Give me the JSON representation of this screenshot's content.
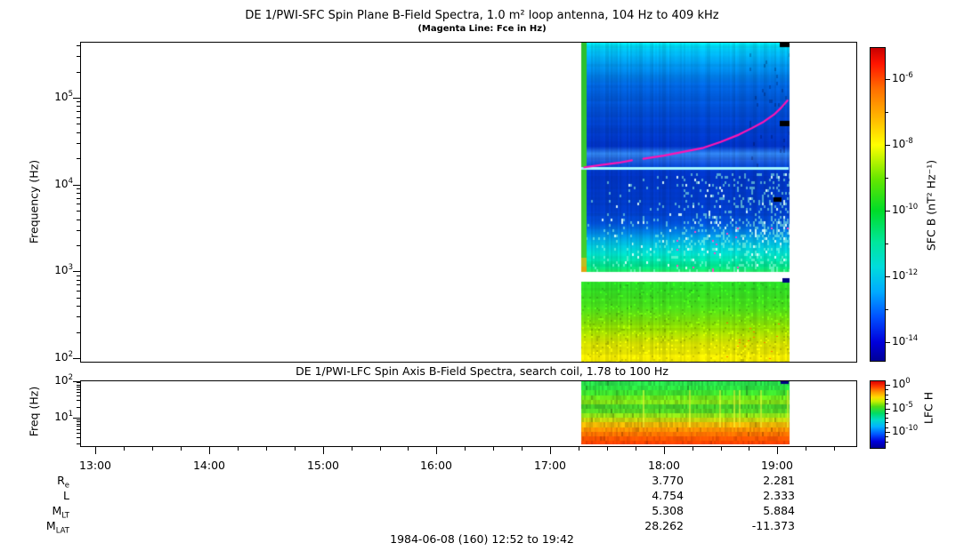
{
  "page": {
    "title": "DE 1/PWI-SFC  Spin Plane B-Field Spectra, 1.0 m² loop antenna, 104 Hz to 409 kHz",
    "subtitle": "(Magenta Line: Fce in Hz)",
    "footer_date": "1984-06-08 (160) 12:52 to 19:42"
  },
  "chart_data": [
    {
      "type": "heatmap",
      "name": "sfc_spectrogram",
      "title": "DE 1/PWI-SFC  Spin Plane B-Field Spectra, 1.0 m² loop antenna, 104 Hz to 409 kHz",
      "ylabel": "Frequency (Hz)",
      "y_scale": "log",
      "y_range_hz": [
        104,
        409000
      ],
      "yticks": [
        {
          "f": 100000,
          "label": "10^5"
        },
        {
          "f": 10000,
          "label": "10^4"
        },
        {
          "f": 1000,
          "label": "10^3"
        },
        {
          "f": 100,
          "label": "10^2"
        }
      ],
      "x_range_time": [
        "12:52",
        "19:42"
      ],
      "xticks": [
        "13:00",
        "14:00",
        "15:00",
        "16:00",
        "17:00",
        "18:00",
        "19:00"
      ],
      "data_coverage_time": [
        "17:16",
        "19:06"
      ],
      "bands_upper_hz": [
        [
          442000,
          "#00E6EE"
        ],
        [
          350000,
          "#00BCEE"
        ],
        [
          250000,
          "#0096E8"
        ],
        [
          140000,
          "#0064DC"
        ],
        [
          60000,
          "#0046CE"
        ],
        [
          28000,
          "#0032C4"
        ],
        [
          23000,
          "#2F80E8"
        ],
        [
          19000,
          "#1E5EDC"
        ],
        [
          15800,
          "#0042D0"
        ],
        [
          13500,
          "#0034C6"
        ],
        [
          5000,
          "#003CC8"
        ],
        [
          3600,
          "#0052DC"
        ],
        [
          2800,
          "#0084E4"
        ],
        [
          2200,
          "#00B8E2"
        ],
        [
          1600,
          "#00DCC8"
        ],
        [
          1150,
          "#00E088"
        ],
        [
          1000,
          "#20E060"
        ]
      ],
      "band_gap_hz": [
        830,
        1000
      ],
      "bands_lower_hz": [
        [
          790,
          "#28DC28"
        ],
        [
          390,
          "#48DC1A"
        ],
        [
          220,
          "#96DE00"
        ],
        [
          150,
          "#D2DE00"
        ],
        [
          104,
          "#EEE600"
        ]
      ],
      "interference_line_hz": 15500,
      "interference_line_color": "#A6F7FF",
      "fce_line_color": "#FF14B4",
      "fce_line_segments_t_hz": [
        [
          [
            17.3,
            15800
          ],
          [
            17.45,
            16800
          ],
          [
            17.6,
            17800
          ],
          [
            17.72,
            19000
          ]
        ],
        [
          [
            17.82,
            19800
          ],
          [
            18.0,
            21500
          ],
          [
            18.15,
            23500
          ],
          [
            18.35,
            26500
          ],
          [
            18.5,
            31000
          ],
          [
            18.66,
            37500
          ],
          [
            18.78,
            45000
          ],
          [
            18.88,
            53000
          ],
          [
            18.97,
            64000
          ],
          [
            19.03,
            76000
          ],
          [
            19.09,
            93000
          ]
        ]
      ],
      "artifact_marks": [
        {
          "x": 876,
          "y": 47,
          "w": 11,
          "h": 6,
          "color": "#000000"
        },
        {
          "x": 876,
          "y": 136,
          "w": 11,
          "h": 6,
          "color": "#000000"
        },
        {
          "x": 869,
          "y": 222,
          "w": 9,
          "h": 5,
          "color": "#000000"
        },
        {
          "x": 879,
          "y": 313,
          "w": 8,
          "h": 5,
          "color": "#000080"
        }
      ],
      "colorbar": {
        "label": "SFC B (nT² Hz⁻¹)",
        "ticks": [
          {
            "exp": -6,
            "label": "10^-6"
          },
          {
            "exp": -8,
            "label": "10^-8"
          },
          {
            "exp": -10,
            "label": "10^-10"
          },
          {
            "exp": -12,
            "label": "10^-12"
          },
          {
            "exp": -14,
            "label": "10^-14"
          }
        ],
        "minor_exps": [
          -5,
          -7,
          -9,
          -11,
          -13
        ],
        "stops": [
          [
            0,
            "#C80000"
          ],
          [
            0.05,
            "#FF1400"
          ],
          [
            0.13,
            "#FF6E00"
          ],
          [
            0.22,
            "#FFB400"
          ],
          [
            0.31,
            "#FFFF00"
          ],
          [
            0.42,
            "#64E600"
          ],
          [
            0.52,
            "#00DC28"
          ],
          [
            0.62,
            "#00E69B"
          ],
          [
            0.7,
            "#00DCDC"
          ],
          [
            0.78,
            "#00AAFF"
          ],
          [
            0.86,
            "#0050FF"
          ],
          [
            0.94,
            "#0000DC"
          ],
          [
            1,
            "#000096"
          ]
        ]
      }
    },
    {
      "type": "heatmap",
      "name": "lfc_spectrogram",
      "title": "DE 1/PWI-LFC  Spin Axis B-Field Spectra, search coil, 1.78 to 100 Hz",
      "ylabel": "Freq (Hz)",
      "y_scale": "log",
      "y_range_hz": [
        1.78,
        100
      ],
      "yticks": [
        {
          "f": 100,
          "label": "10^2"
        },
        {
          "f": 10,
          "label": "10^1"
        }
      ],
      "data_coverage_time": [
        "17:16",
        "19:06"
      ],
      "bands_hz": [
        [
          100,
          "#28DC50"
        ],
        [
          55,
          "#2CE238"
        ],
        [
          40,
          "#5CE61E"
        ],
        [
          29,
          "#8CE414"
        ],
        [
          21,
          "#44CC28"
        ],
        [
          15,
          "#54D422"
        ],
        [
          10.5,
          "#A8E410"
        ],
        [
          5.6,
          "#FFA000"
        ],
        [
          3.0,
          "#FF5A00"
        ],
        [
          1.78,
          "#FF3C00"
        ]
      ],
      "colorbar": {
        "label": "LFC H",
        "ticks": [
          {
            "exp": 0,
            "label": "10^0"
          },
          {
            "exp": -5,
            "label": "10^-5"
          },
          {
            "exp": -10,
            "label": "10^-10"
          }
        ],
        "stops": [
          [
            0,
            "#DC0000"
          ],
          [
            0.08,
            "#FF3C00"
          ],
          [
            0.16,
            "#FF9600"
          ],
          [
            0.24,
            "#FFDC00"
          ],
          [
            0.3,
            "#C8F000"
          ],
          [
            0.38,
            "#50DC14"
          ],
          [
            0.48,
            "#00DC64"
          ],
          [
            0.58,
            "#00DCC8"
          ],
          [
            0.68,
            "#00B4FF"
          ],
          [
            0.8,
            "#0050FF"
          ],
          [
            0.9,
            "#0000DC"
          ],
          [
            1,
            "#000096"
          ]
        ]
      }
    }
  ],
  "orbit_table": {
    "columns": [
      "18:00",
      "19:00"
    ],
    "rows": [
      {
        "label": "R_e",
        "values": [
          "3.770",
          "2.281"
        ]
      },
      {
        "label": "L",
        "values": [
          "4.754",
          "2.333"
        ]
      },
      {
        "label": "M_LT",
        "values": [
          "5.308",
          "5.884"
        ]
      },
      {
        "label": "M_LAT",
        "values": [
          "28.262",
          "-11.373"
        ]
      }
    ]
  }
}
